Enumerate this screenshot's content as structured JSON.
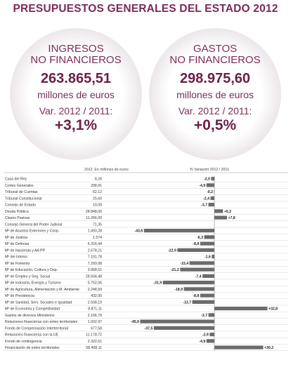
{
  "title": "PRESUPUESTOS GENERALES DEL ESTADO 2012",
  "ingresos": {
    "line1": "INGRESOS",
    "line2": "NO FINANCIEROS",
    "amount": "263.865,51",
    "unit": "millones de euros",
    "var_label": "Var. 2012 / 2011:",
    "var_value": "+3,1%"
  },
  "gastos": {
    "line1": "GASTOS",
    "line2": "NO FINANCIEROS",
    "amount": "298.975,60",
    "unit": "millones de euros",
    "var_label": "Var. 2012 / 2011:",
    "var_value": "+0,5%"
  },
  "chart_data": {
    "type": "bar",
    "orientation": "horizontal",
    "col_header_value": "2012. En millones de euros",
    "col_header_pct": "% Variación 2012 / 2011",
    "bar_color": "#6b6b6b",
    "rows": [
      {
        "label": "Casa del Rey",
        "value": "8,26",
        "pct": -2.0,
        "pct_label": "-2,0"
      },
      {
        "label": "Cortes Generales",
        "value": "208,91",
        "pct": -4.9,
        "pct_label": "-4,9"
      },
      {
        "label": "Tribunal de Cuentas",
        "value": "62,12",
        "pct": -0.2,
        "pct_label": "-0,2"
      },
      {
        "label": "Tribunal Constitucional",
        "value": "25,60",
        "pct": -2.4,
        "pct_label": "-2,4"
      },
      {
        "label": "Consejo de Estado",
        "value": "10,09",
        "pct": -3.7,
        "pct_label": "-3,7"
      },
      {
        "label": "Deuda Pública",
        "value": "28.848,00",
        "pct": 5.3,
        "pct_label": "+5,3"
      },
      {
        "label": "Clases Pasivas",
        "value": "11.266,00",
        "pct": 7.8,
        "pct_label": "+7,8"
      },
      {
        "label": "Consejo General del Poder Judicial",
        "value": "71,35",
        "pct": 0,
        "pct_label": ""
      },
      {
        "label": "Mº de Asuntos Exteriores y Coop.",
        "value": "1.493,28",
        "pct": -43.6,
        "pct_label": "-43,6"
      },
      {
        "label": "Mº de Justicia",
        "value": "1.574",
        "pct": -6.3,
        "pct_label": "-6,3"
      },
      {
        "label": "Mº de Defensa",
        "value": "6.316,44",
        "pct": -8.8,
        "pct_label": "-8,8"
      },
      {
        "label": "Mº de Hacienda y AA PP",
        "value": "2.678,21",
        "pct": -22.9,
        "pct_label": "-22,9"
      },
      {
        "label": "Mº del Interior",
        "value": "7.101,78",
        "pct": -1.6,
        "pct_label": "-1,6"
      },
      {
        "label": "Mº de Fomento",
        "value": "7.293,08",
        "pct": -15.4,
        "pct_label": "-15,4"
      },
      {
        "label": "Mº de Educación, Cultura y Dep.",
        "value": "3.068,51",
        "pct": -21.2,
        "pct_label": "-21,2"
      },
      {
        "label": "Mº de Empleo y Seg. Social",
        "value": "28.504,48",
        "pct": -7.4,
        "pct_label": "-7,4"
      },
      {
        "label": "Mº de Industria, Energía y Turismo",
        "value": "5.752,06",
        "pct": -31.9,
        "pct_label": "-31,9"
      },
      {
        "label": "Mº de Agricultura, Alimentación y M. Ambiente",
        "value": "2.248,59",
        "pct": -18.9,
        "pct_label": "-18,9"
      },
      {
        "label": "Mº de Presidencia",
        "value": "432,00",
        "pct": -8.8,
        "pct_label": "-8,8"
      },
      {
        "label": "Mº de Sanidad, Serv. Sociales e Igualdad",
        "value": "2.508,19",
        "pct": -13.7,
        "pct_label": "-13,7"
      },
      {
        "label": "Mº de Economía y Competitividad",
        "value": "8.871,11",
        "pct": 32.8,
        "pct_label": "+32,8"
      },
      {
        "label": "Gastos de diversos Ministerios",
        "value": "2.106,79",
        "pct": -3.7,
        "pct_label": "-3,7"
      },
      {
        "label": "Relaciones financieras con entes territoriales",
        "value": "1.002,97",
        "pct": -45.9,
        "pct_label": "-45,9"
      },
      {
        "label": "Fondo de Compensación Interterritorial",
        "value": "677,58",
        "pct": -37.5,
        "pct_label": "-37,5"
      },
      {
        "label": "Relaciones financieras con la UE",
        "value": "11.178,72",
        "pct": -2.9,
        "pct_label": "-2,9"
      },
      {
        "label": "Fondo de contingencia",
        "value": "2.322,61",
        "pct": -4.9,
        "pct_label": "-4,9"
      },
      {
        "label": "Financiación de entes territoriales",
        "value": "58.408,11",
        "pct": 30.2,
        "pct_label": "+30,2"
      }
    ]
  }
}
